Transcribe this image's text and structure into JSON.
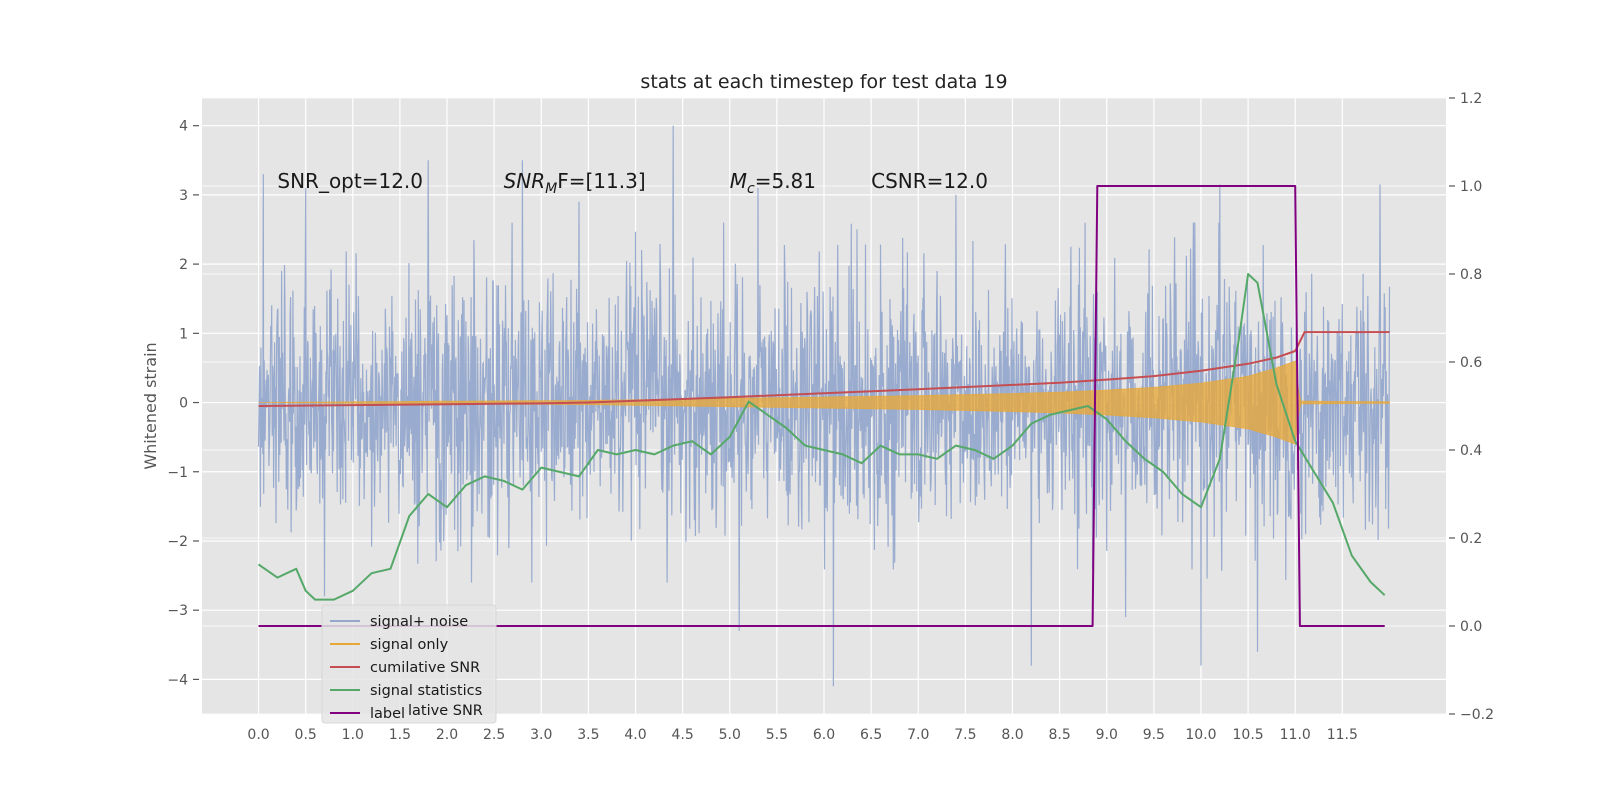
{
  "chart_data": {
    "type": "line",
    "title": "stats at each timestep for test data 19",
    "ylabel": "Whitened strain",
    "xlim": [
      -0.6,
      12.6
    ],
    "ylim": [
      -4.5,
      4.4
    ],
    "y2lim": [
      -0.2,
      1.2
    ],
    "x_ticks": [
      "0.0",
      "0.5",
      "1.0",
      "1.5",
      "2.0",
      "2.5",
      "3.0",
      "3.5",
      "4.0",
      "4.5",
      "5.0",
      "5.5",
      "6.0",
      "6.5",
      "7.0",
      "7.5",
      "8.0",
      "8.5",
      "9.0",
      "9.5",
      "10.0",
      "10.5",
      "11.0",
      "11.5"
    ],
    "y_ticks": [
      "4",
      "3",
      "2",
      "1",
      "0",
      "−1",
      "−2",
      "−3",
      "−4"
    ],
    "y2_ticks": [
      "1.2",
      "1.0",
      "0.8",
      "0.6",
      "0.4",
      "0.2",
      "0.0",
      "−0.2"
    ],
    "grid": true,
    "annotations": [
      {
        "text": "SNR_opt=12.0",
        "x": 0.2,
        "y": 3.2
      },
      {
        "text": "SNR",
        "sub": "M",
        "after": "F=[11.3]",
        "italic": true,
        "x": 2.6,
        "y": 3.2
      },
      {
        "text": "M",
        "sub": "c",
        "after": "=5.81",
        "italic": true,
        "x": 5.0,
        "y": 3.2
      },
      {
        "text": "CSNR=12.0",
        "x": 6.5,
        "y": 3.2
      }
    ],
    "legend_position": "lower-left",
    "legend_ghost_text": "lative SNR",
    "series": [
      {
        "name": "signal+ noise",
        "color": "#95a8cc",
        "axis": "left",
        "x_range": [
          0.0,
          12.0
        ],
        "typical_band": [
          -2.0,
          2.0
        ],
        "peaks": [
          {
            "x": 0.05,
            "y": 3.3
          },
          {
            "x": 0.5,
            "y": 3.1
          },
          {
            "x": 1.8,
            "y": 3.5
          },
          {
            "x": 2.8,
            "y": 3.5
          },
          {
            "x": 3.4,
            "y": 2.9
          },
          {
            "x": 4.4,
            "y": 4.0
          },
          {
            "x": 5.3,
            "y": 3.1
          },
          {
            "x": 7.4,
            "y": 3.0
          },
          {
            "x": 10.2,
            "y": 3.15
          },
          {
            "x": 11.9,
            "y": 3.15
          },
          {
            "x": 0.7,
            "y": -2.8
          },
          {
            "x": 5.1,
            "y": -3.3
          },
          {
            "x": 6.1,
            "y": -4.1
          },
          {
            "x": 8.2,
            "y": -3.8
          },
          {
            "x": 9.2,
            "y": -3.1
          },
          {
            "x": 10.0,
            "y": -3.8
          },
          {
            "x": 10.6,
            "y": -3.6
          }
        ]
      },
      {
        "name": "signal only",
        "color": "#e8a838",
        "axis": "left",
        "envelope": {
          "x": [
            0.0,
            2.0,
            3.5,
            5.0,
            6.0,
            7.0,
            8.0,
            8.5,
            9.0,
            9.5,
            10.0,
            10.5,
            10.8,
            11.0,
            11.05,
            12.0
          ],
          "amp": [
            0.0,
            0.02,
            0.03,
            0.06,
            0.08,
            0.1,
            0.13,
            0.15,
            0.18,
            0.22,
            0.28,
            0.38,
            0.5,
            0.6,
            0.02,
            0.01
          ]
        }
      },
      {
        "name": "cumilative SNR",
        "color": "#c44e52",
        "axis": "right",
        "x": [
          0.0,
          1.0,
          2.0,
          3.0,
          3.5,
          4.0,
          5.0,
          6.0,
          7.0,
          8.0,
          8.5,
          9.0,
          9.5,
          10.0,
          10.5,
          10.8,
          11.0,
          11.1,
          12.0
        ],
        "values": [
          0.5,
          0.502,
          0.504,
          0.506,
          0.508,
          0.512,
          0.52,
          0.529,
          0.538,
          0.548,
          0.553,
          0.56,
          0.568,
          0.58,
          0.596,
          0.61,
          0.625,
          0.668,
          0.668
        ]
      },
      {
        "name": "signal statistics",
        "color": "#55a868",
        "axis": "right",
        "x": [
          0.0,
          0.2,
          0.4,
          0.5,
          0.6,
          0.8,
          1.0,
          1.2,
          1.4,
          1.6,
          1.8,
          2.0,
          2.2,
          2.4,
          2.6,
          2.8,
          3.0,
          3.2,
          3.4,
          3.6,
          3.8,
          4.0,
          4.2,
          4.4,
          4.6,
          4.8,
          5.0,
          5.2,
          5.4,
          5.6,
          5.8,
          6.0,
          6.2,
          6.4,
          6.6,
          6.8,
          7.0,
          7.2,
          7.4,
          7.6,
          7.8,
          8.0,
          8.2,
          8.4,
          8.6,
          8.8,
          9.0,
          9.2,
          9.4,
          9.6,
          9.8,
          10.0,
          10.2,
          10.4,
          10.5,
          10.6,
          10.8,
          11.0,
          11.2,
          11.4,
          11.6,
          11.8,
          11.95
        ],
        "values": [
          0.14,
          0.11,
          0.13,
          0.08,
          0.06,
          0.06,
          0.08,
          0.12,
          0.13,
          0.25,
          0.3,
          0.27,
          0.32,
          0.34,
          0.33,
          0.31,
          0.36,
          0.35,
          0.34,
          0.4,
          0.39,
          0.4,
          0.39,
          0.41,
          0.42,
          0.39,
          0.43,
          0.51,
          0.48,
          0.45,
          0.41,
          0.4,
          0.39,
          0.37,
          0.41,
          0.39,
          0.39,
          0.38,
          0.41,
          0.4,
          0.38,
          0.41,
          0.46,
          0.48,
          0.49,
          0.5,
          0.47,
          0.42,
          0.38,
          0.35,
          0.3,
          0.27,
          0.38,
          0.65,
          0.8,
          0.78,
          0.55,
          0.42,
          0.35,
          0.28,
          0.16,
          0.1,
          0.07
        ]
      },
      {
        "name": "label",
        "color": "#800080",
        "axis": "right",
        "x": [
          0.0,
          8.85,
          8.9,
          11.0,
          11.05,
          11.95
        ],
        "values": [
          0.0,
          0.0,
          1.0,
          1.0,
          0.0,
          0.0
        ]
      }
    ]
  }
}
